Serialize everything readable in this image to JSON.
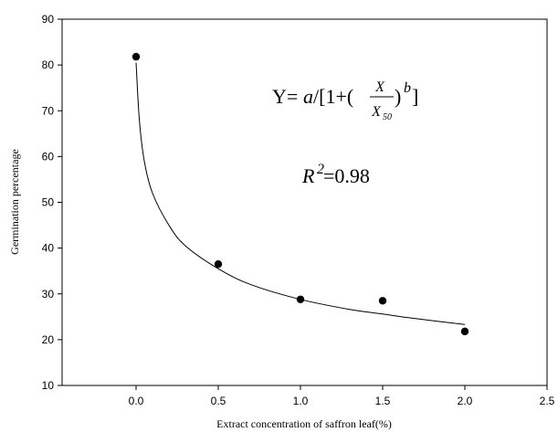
{
  "chart_data": {
    "type": "scatter",
    "xlabel": "Extract concentration of saffron leaf(%)",
    "ylabel": "Germination percentage",
    "xlim": [
      -0.45,
      2.5
    ],
    "ylim": [
      10,
      90
    ],
    "xticks": [
      0.0,
      0.5,
      1.0,
      1.5,
      2.0,
      2.5
    ],
    "xtick_labels": [
      "0.0",
      "0.5",
      "1.0",
      "1.5",
      "2.0",
      "2.5"
    ],
    "yticks": [
      10,
      20,
      30,
      40,
      50,
      60,
      70,
      80,
      90
    ],
    "ytick_labels": [
      "10",
      "20",
      "30",
      "40",
      "50",
      "60",
      "70",
      "80",
      "90"
    ],
    "grid": false,
    "series": [
      {
        "kind": "points",
        "x": [
          0.0,
          0.5,
          1.0,
          1.5,
          2.0
        ],
        "y": [
          81.8,
          36.5,
          28.8,
          28.5,
          21.8
        ]
      },
      {
        "kind": "fitted-curve",
        "x": [
          0.0,
          0.02,
          0.05,
          0.1,
          0.2,
          0.3,
          0.5,
          0.7,
          1.0,
          1.3,
          1.5,
          1.7,
          2.0
        ],
        "y": [
          80.5,
          68,
          59,
          52,
          45,
          40.5,
          35.5,
          32,
          28.8,
          26.6,
          25.6,
          24.6,
          23.3
        ]
      }
    ],
    "annotations": {
      "equation": {
        "prefix": "Y=",
        "a": "a",
        "bracket_open": "/[1+(",
        "numerator": "X",
        "denominator": "X",
        "denominator_sub": "50",
        "bracket_close": ")",
        "exponent": "b",
        "end": "]"
      },
      "r_squared": {
        "symbol": "R",
        "superscript": "2",
        "value": " =0.98"
      }
    }
  }
}
